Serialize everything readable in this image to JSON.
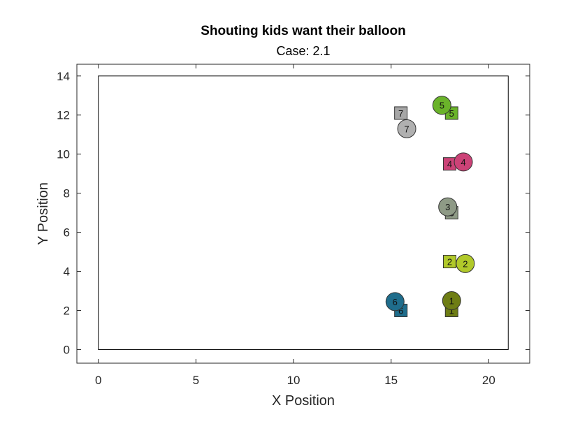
{
  "chart_data": {
    "type": "scatter",
    "title": "Shouting kids want their balloon",
    "subtitle": "Case: 2.1",
    "xlabel": "X Position",
    "ylabel": "Y Position",
    "xlim": [
      -1.1,
      22.1
    ],
    "ylim": [
      -0.7,
      14.6
    ],
    "xticks": [
      0,
      5,
      10,
      15,
      20
    ],
    "yticks": [
      0,
      2,
      4,
      6,
      8,
      10,
      12,
      14
    ],
    "grid": false,
    "room": {
      "x": [
        0,
        21
      ],
      "y": [
        0,
        14
      ]
    },
    "series": [
      {
        "marker": "square",
        "points": [
          {
            "label": "1",
            "x": 18.1,
            "y": 2.0,
            "color": "#6e7d14"
          },
          {
            "label": "2",
            "x": 18.0,
            "y": 4.5,
            "color": "#b1c92a"
          },
          {
            "label": "3",
            "x": 18.1,
            "y": 7.0,
            "color": "#8e9a86"
          },
          {
            "label": "4",
            "x": 18.0,
            "y": 9.5,
            "color": "#cc4277"
          },
          {
            "label": "5",
            "x": 18.1,
            "y": 12.1,
            "color": "#6ab32a"
          },
          {
            "label": "6",
            "x": 15.5,
            "y": 2.0,
            "color": "#1f6d8c"
          },
          {
            "label": "7",
            "x": 15.5,
            "y": 12.1,
            "color": "#a6a6a6"
          }
        ]
      },
      {
        "marker": "circle",
        "points": [
          {
            "label": "1",
            "x": 18.1,
            "y": 2.5,
            "color": "#6e7d14"
          },
          {
            "label": "2",
            "x": 18.8,
            "y": 4.4,
            "color": "#b1c92a"
          },
          {
            "label": "3",
            "x": 17.9,
            "y": 7.3,
            "color": "#8e9a86"
          },
          {
            "label": "4",
            "x": 18.7,
            "y": 9.6,
            "color": "#cc4277"
          },
          {
            "label": "5",
            "x": 17.6,
            "y": 12.5,
            "color": "#6ab32a"
          },
          {
            "label": "6",
            "x": 15.2,
            "y": 2.45,
            "color": "#1f6d8c"
          },
          {
            "label": "7",
            "x": 15.8,
            "y": 11.3,
            "color": "#b0b0b0"
          }
        ]
      }
    ]
  }
}
